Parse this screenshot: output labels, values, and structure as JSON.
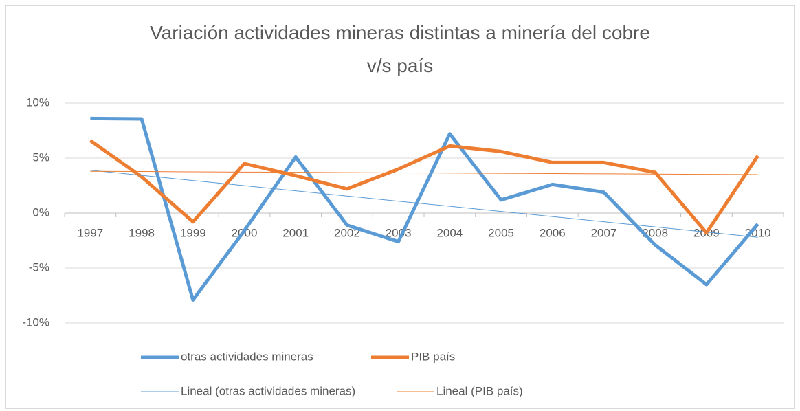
{
  "chart_data": {
    "type": "line",
    "title": "Variación actividades mineras distintas a minería del cobre v/s país",
    "categories": [
      "1997",
      "1998",
      "1999",
      "2000",
      "2001",
      "2002",
      "2003",
      "2004",
      "2005",
      "2006",
      "2007",
      "2008",
      "2009",
      "2010"
    ],
    "series": [
      {
        "name": "otras actividades mineras",
        "color": "#5b9bd5",
        "line_width": 5,
        "values": [
          8.6,
          8.56,
          -7.9,
          -1.6,
          5.1,
          -1.1,
          -2.6,
          7.2,
          1.2,
          2.6,
          1.9,
          -2.9,
          -6.5,
          -1.0
        ]
      },
      {
        "name": "PIB país",
        "color": "#ed7d31",
        "line_width": 5,
        "values": [
          6.6,
          3.3,
          -0.8,
          4.5,
          3.4,
          2.2,
          4.0,
          6.1,
          5.6,
          4.6,
          4.6,
          3.7,
          -1.8,
          5.2
        ]
      },
      {
        "name": "Lineal (otras actividades mineras)",
        "color": "#5b9bd5",
        "line_width": 1,
        "values": [
          3.9,
          3.43,
          2.96,
          2.49,
          2.02,
          1.55,
          1.08,
          0.62,
          0.15,
          -0.32,
          -0.79,
          -1.26,
          -1.73,
          -2.2
        ]
      },
      {
        "name": "Lineal (PIB país)",
        "color": "#ed7d31",
        "line_width": 1,
        "values": [
          3.8,
          3.78,
          3.75,
          3.73,
          3.71,
          3.68,
          3.66,
          3.64,
          3.62,
          3.59,
          3.57,
          3.55,
          3.52,
          3.5
        ]
      }
    ],
    "ylim": [
      -10,
      10
    ],
    "yticks": [
      {
        "value": -10,
        "label": "-10%"
      },
      {
        "value": -5,
        "label": "-5%"
      },
      {
        "value": 0,
        "label": "0%"
      },
      {
        "value": 5,
        "label": "5%"
      },
      {
        "value": 10,
        "label": "10%"
      }
    ],
    "grid": true,
    "legend": "bottom"
  }
}
